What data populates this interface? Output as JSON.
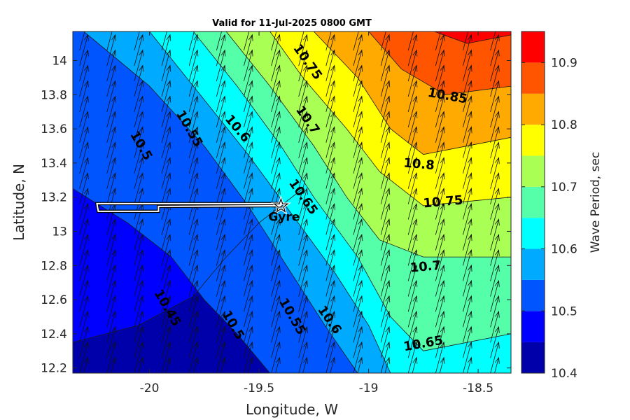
{
  "chart_data": {
    "type": "contourf",
    "title": "Valid for 11-Jul-2025 0800 GMT",
    "xlabel": "Longitude, W",
    "ylabel": "Latitude, N",
    "xlim": [
      -20.35,
      -18.35
    ],
    "ylim": [
      12.17,
      14.17
    ],
    "xticks": [
      -20,
      -19.5,
      -19,
      -18.5
    ],
    "xtick_labels": [
      "-20",
      "-19.5",
      "-19",
      "-18.5"
    ],
    "yticks": [
      12.2,
      12.4,
      12.6,
      12.8,
      13,
      13.2,
      13.4,
      13.6,
      13.8,
      14
    ],
    "ytick_labels": [
      "12.2",
      "12.4",
      "12.6",
      "12.8",
      "13",
      "13.2",
      "13.4",
      "13.6",
      "13.8",
      "14"
    ],
    "colorbar": {
      "label": "Wave Period, sec",
      "range": [
        10.4,
        10.95
      ],
      "ticks": [
        10.4,
        10.5,
        10.6,
        10.7,
        10.8,
        10.9
      ],
      "tick_labels": [
        "10.4",
        "10.5",
        "10.6",
        "10.7",
        "10.8",
        "10.9"
      ],
      "levels": [
        10.4,
        10.45,
        10.5,
        10.55,
        10.6,
        10.65,
        10.7,
        10.75,
        10.8,
        10.85,
        10.9,
        10.95
      ],
      "colors": [
        "#0000aa",
        "#0000ff",
        "#0055ff",
        "#00aaff",
        "#00ffff",
        "#55ffaa",
        "#aaff55",
        "#ffff00",
        "#ffaa00",
        "#ff5500",
        "#ff0000"
      ]
    },
    "contour_lines": [
      {
        "level": 10.45,
        "points": [
          [
            -20.35,
            12.35
          ],
          [
            -20.05,
            12.45
          ],
          [
            -19.8,
            12.62
          ],
          [
            -19.65,
            12.85
          ],
          [
            -19.5,
            13.05
          ],
          [
            -19.3,
            13.25
          ]
        ]
      },
      {
        "level": 10.5,
        "points": [
          [
            -20.35,
            13.25
          ],
          [
            -20.1,
            13.05
          ],
          [
            -19.9,
            12.85
          ],
          [
            -19.75,
            12.6
          ],
          [
            -19.6,
            12.4
          ],
          [
            -19.45,
            12.17
          ]
        ]
      },
      {
        "level": 10.55,
        "points": [
          [
            -20.3,
            14.17
          ],
          [
            -20.0,
            13.85
          ],
          [
            -19.75,
            13.5
          ],
          [
            -19.55,
            13.15
          ],
          [
            -19.35,
            12.75
          ],
          [
            -19.2,
            12.45
          ],
          [
            -19.05,
            12.17
          ]
        ]
      },
      {
        "level": 10.6,
        "points": [
          [
            -20.0,
            14.17
          ],
          [
            -19.8,
            13.85
          ],
          [
            -19.55,
            13.45
          ],
          [
            -19.35,
            13.1
          ],
          [
            -19.15,
            12.75
          ],
          [
            -19.0,
            12.45
          ],
          [
            -18.9,
            12.17
          ]
        ]
      },
      {
        "level": 10.65,
        "points": [
          [
            -19.8,
            14.17
          ],
          [
            -19.6,
            13.85
          ],
          [
            -19.4,
            13.5
          ],
          [
            -19.25,
            13.2
          ],
          [
            -19.05,
            12.85
          ],
          [
            -18.9,
            12.5
          ],
          [
            -18.75,
            12.3
          ],
          [
            -18.35,
            12.4
          ]
        ]
      },
      {
        "level": 10.7,
        "points": [
          [
            -19.65,
            14.17
          ],
          [
            -19.45,
            13.85
          ],
          [
            -19.25,
            13.5
          ],
          [
            -19.1,
            13.2
          ],
          [
            -18.95,
            12.95
          ],
          [
            -18.75,
            12.85
          ],
          [
            -18.35,
            12.85
          ]
        ]
      },
      {
        "level": 10.75,
        "points": [
          [
            -19.45,
            14.17
          ],
          [
            -19.3,
            13.9
          ],
          [
            -19.1,
            13.6
          ],
          [
            -18.95,
            13.35
          ],
          [
            -18.75,
            13.15
          ],
          [
            -18.35,
            13.2
          ]
        ]
      },
      {
        "level": 10.8,
        "points": [
          [
            -19.25,
            14.17
          ],
          [
            -19.05,
            13.9
          ],
          [
            -18.9,
            13.6
          ],
          [
            -18.75,
            13.45
          ],
          [
            -18.35,
            13.55
          ]
        ]
      },
      {
        "level": 10.85,
        "points": [
          [
            -19.0,
            14.17
          ],
          [
            -18.85,
            13.95
          ],
          [
            -18.65,
            13.8
          ],
          [
            -18.35,
            13.85
          ]
        ]
      },
      {
        "level": 10.9,
        "points": [
          [
            -18.7,
            14.17
          ],
          [
            -18.55,
            14.1
          ],
          [
            -18.35,
            14.15
          ]
        ]
      }
    ],
    "contour_labels": [
      {
        "text": "10.45",
        "x": -19.92,
        "y": 12.55,
        "angle": 60
      },
      {
        "text": "10.5",
        "x": -20.04,
        "y": 13.5,
        "angle": 60
      },
      {
        "text": "10.5",
        "x": -19.62,
        "y": 12.45,
        "angle": 60
      },
      {
        "text": "10.55",
        "x": -19.82,
        "y": 13.6,
        "angle": 60
      },
      {
        "text": "10.55",
        "x": -19.35,
        "y": 12.5,
        "angle": 60
      },
      {
        "text": "10.6",
        "x": -19.6,
        "y": 13.6,
        "angle": 50
      },
      {
        "text": "10.6",
        "x": -19.18,
        "y": 12.48,
        "angle": 55
      },
      {
        "text": "10.65",
        "x": -19.3,
        "y": 13.2,
        "angle": 55
      },
      {
        "text": "10.65",
        "x": -18.75,
        "y": 12.34,
        "angle": -10
      },
      {
        "text": "10.7",
        "x": -19.28,
        "y": 13.65,
        "angle": 55
      },
      {
        "text": "10.7",
        "x": -18.74,
        "y": 12.79,
        "angle": -5
      },
      {
        "text": "10.75",
        "x": -19.28,
        "y": 13.99,
        "angle": 55
      },
      {
        "text": "10.75",
        "x": -18.66,
        "y": 13.17,
        "angle": -5
      },
      {
        "text": "10.8",
        "x": -18.77,
        "y": 13.39,
        "angle": 5
      },
      {
        "text": "10.85",
        "x": -18.64,
        "y": 13.79,
        "angle": 10
      }
    ],
    "vectors": {
      "direction_deg": 15,
      "x_spacing": 0.125,
      "y_spacing": 0.09
    },
    "site": {
      "name": "Gyre",
      "lon": -19.4,
      "lat": 13.14
    },
    "track": [
      [
        -20.24,
        13.15
      ],
      [
        -19.4,
        13.15
      ]
    ]
  }
}
